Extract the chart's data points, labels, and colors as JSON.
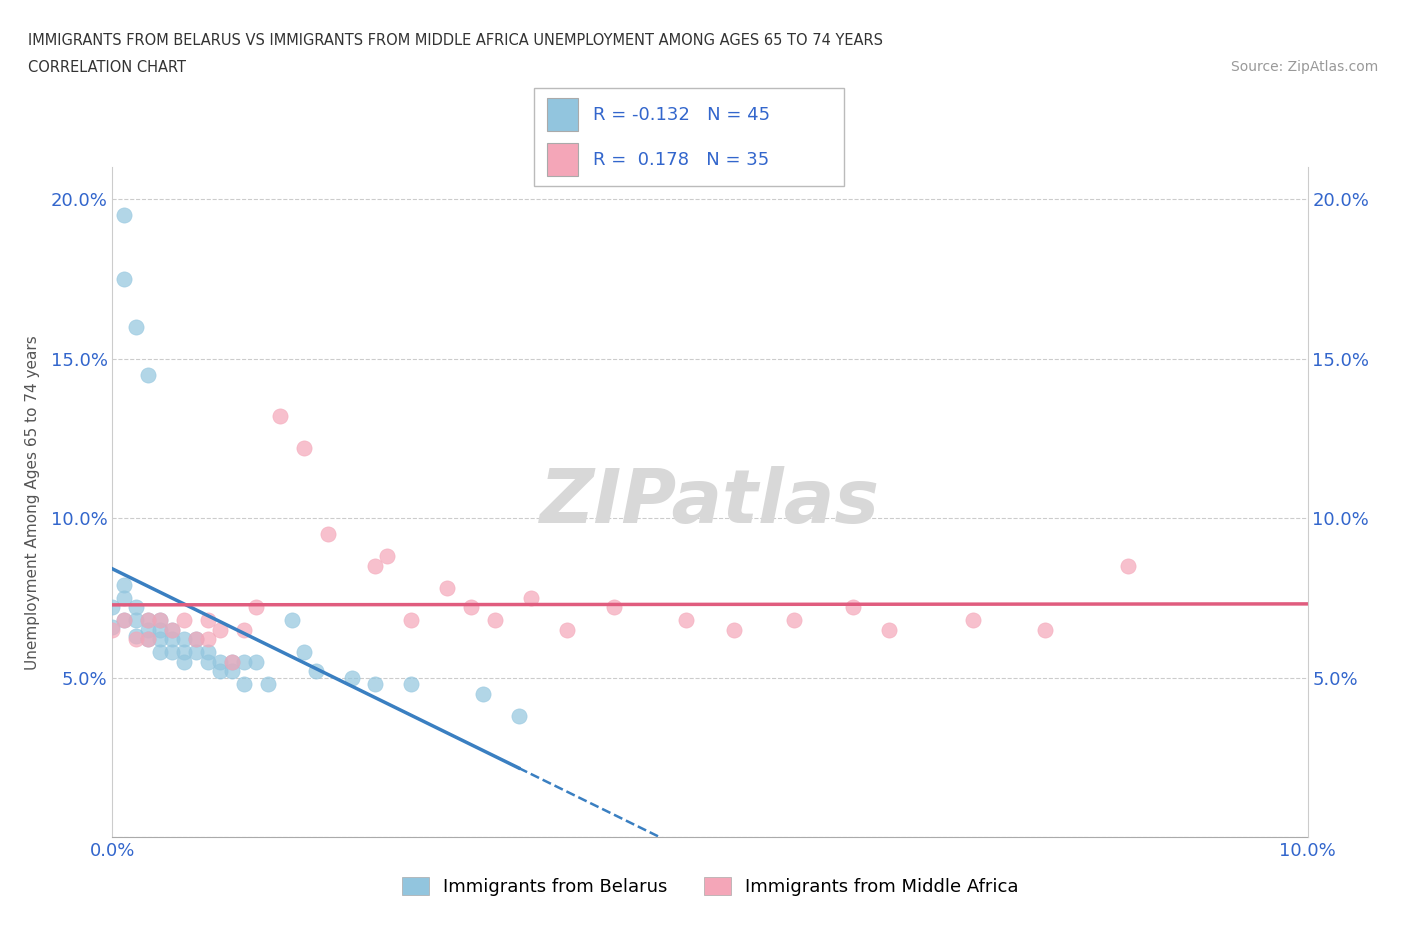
{
  "title_line1": "IMMIGRANTS FROM BELARUS VS IMMIGRANTS FROM MIDDLE AFRICA UNEMPLOYMENT AMONG AGES 65 TO 74 YEARS",
  "title_line2": "CORRELATION CHART",
  "source_text": "Source: ZipAtlas.com",
  "ylabel": "Unemployment Among Ages 65 to 74 years",
  "xlim": [
    0.0,
    0.1
  ],
  "ylim": [
    0.0,
    0.21
  ],
  "belarus_color": "#92c5de",
  "middle_africa_color": "#f4a6b8",
  "belarus_R": -0.132,
  "belarus_N": 45,
  "middle_africa_R": 0.178,
  "middle_africa_N": 35,
  "belarus_line_color": "#3a7fc1",
  "middle_africa_line_color": "#e05c7e",
  "watermark_color": "#d8d8d8",
  "belarus_scatter_x": [
    0.001,
    0.001,
    0.002,
    0.003,
    0.0,
    0.0,
    0.001,
    0.001,
    0.001,
    0.002,
    0.002,
    0.002,
    0.003,
    0.003,
    0.003,
    0.004,
    0.004,
    0.004,
    0.004,
    0.005,
    0.005,
    0.005,
    0.006,
    0.006,
    0.006,
    0.007,
    0.007,
    0.008,
    0.008,
    0.009,
    0.009,
    0.01,
    0.01,
    0.011,
    0.011,
    0.012,
    0.013,
    0.015,
    0.016,
    0.017,
    0.02,
    0.022,
    0.025,
    0.031,
    0.034
  ],
  "belarus_scatter_y": [
    0.195,
    0.175,
    0.16,
    0.145,
    0.072,
    0.066,
    0.079,
    0.075,
    0.068,
    0.072,
    0.068,
    0.063,
    0.068,
    0.065,
    0.062,
    0.068,
    0.065,
    0.062,
    0.058,
    0.065,
    0.062,
    0.058,
    0.062,
    0.058,
    0.055,
    0.062,
    0.058,
    0.058,
    0.055,
    0.055,
    0.052,
    0.055,
    0.052,
    0.055,
    0.048,
    0.055,
    0.048,
    0.068,
    0.058,
    0.052,
    0.05,
    0.048,
    0.048,
    0.045,
    0.038
  ],
  "middle_africa_scatter_x": [
    0.0,
    0.001,
    0.002,
    0.003,
    0.003,
    0.004,
    0.005,
    0.006,
    0.007,
    0.008,
    0.008,
    0.009,
    0.01,
    0.011,
    0.012,
    0.014,
    0.016,
    0.018,
    0.022,
    0.023,
    0.025,
    0.028,
    0.03,
    0.032,
    0.035,
    0.038,
    0.042,
    0.048,
    0.052,
    0.057,
    0.062,
    0.065,
    0.072,
    0.078,
    0.085
  ],
  "middle_africa_scatter_y": [
    0.065,
    0.068,
    0.062,
    0.068,
    0.062,
    0.068,
    0.065,
    0.068,
    0.062,
    0.068,
    0.062,
    0.065,
    0.055,
    0.065,
    0.072,
    0.132,
    0.122,
    0.095,
    0.085,
    0.088,
    0.068,
    0.078,
    0.072,
    0.068,
    0.075,
    0.065,
    0.072,
    0.068,
    0.065,
    0.068,
    0.072,
    0.065,
    0.068,
    0.065,
    0.085
  ]
}
